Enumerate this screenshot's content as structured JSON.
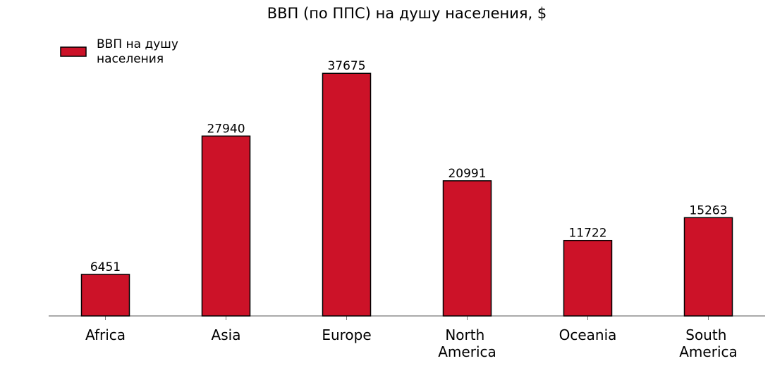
{
  "chart_data": {
    "type": "bar",
    "title": "ВВП (по ППС) на душу населения, $",
    "categories": [
      "Africa",
      "Asia",
      "Europe",
      "North America",
      "Oceania",
      "South America"
    ],
    "series": [
      {
        "name": "ВВП на душу населения",
        "color": "#cc1228",
        "values": [
          6451,
          27940,
          37675,
          20991,
          11722,
          15263
        ]
      }
    ],
    "ylim": [
      0,
      39560
    ],
    "legend": "upper left"
  }
}
